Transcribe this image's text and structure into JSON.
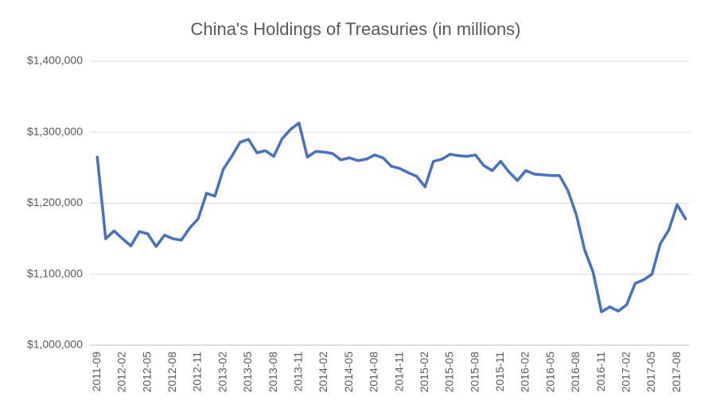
{
  "chart_data": {
    "type": "line",
    "title": "China's Holdings of Treasuries (in millions)",
    "categories": [
      "2011-09",
      null,
      null,
      "2012-02",
      null,
      null,
      "2012-05",
      null,
      null,
      "2012-08",
      null,
      null,
      "2012-11",
      null,
      null,
      "2013-02",
      null,
      null,
      "2013-05",
      null,
      null,
      "2013-08",
      null,
      null,
      "2013-11",
      null,
      null,
      "2014-02",
      null,
      null,
      "2014-05",
      null,
      null,
      "2014-08",
      null,
      null,
      "2014-11",
      null,
      null,
      "2015-02",
      null,
      null,
      "2015-05",
      null,
      null,
      "2015-08",
      null,
      null,
      "2015-11",
      null,
      null,
      "2016-02",
      null,
      null,
      "2016-05",
      null,
      null,
      "2016-08",
      null,
      null,
      "2016-11",
      null,
      null,
      "2017-02",
      null,
      null,
      "2017-05",
      null,
      null,
      "2017-08",
      null
    ],
    "series": [
      {
        "name": "Holdings",
        "color": "#4472c4",
        "values": [
          1265000,
          1150000,
          1161000,
          1150000,
          1140000,
          1160000,
          1157000,
          1139000,
          1155000,
          1150000,
          1148000,
          1165000,
          1178000,
          1214000,
          1210000,
          1248000,
          1266000,
          1286000,
          1290000,
          1271000,
          1274000,
          1266000,
          1291000,
          1304000,
          1313000,
          1265000,
          1273000,
          1272000,
          1270000,
          1261000,
          1264000,
          1260000,
          1262000,
          1268000,
          1264000,
          1252000,
          1249000,
          1243000,
          1238000,
          1223000,
          1259000,
          1262000,
          1269000,
          1267000,
          1266000,
          1268000,
          1253000,
          1246000,
          1259000,
          1244000,
          1232000,
          1246000,
          1241000,
          1240000,
          1239000,
          1239000,
          1218000,
          1184000,
          1134000,
          1103000,
          1047000,
          1054000,
          1048000,
          1057000,
          1087000,
          1092000,
          1100000,
          1143000,
          1162000,
          1198000,
          1178000
        ]
      }
    ],
    "ylim": [
      1000000,
      1400000
    ],
    "yticks": [
      {
        "value": 1000000,
        "label": "$1,000,000"
      },
      {
        "value": 1100000,
        "label": "$1,100,000"
      },
      {
        "value": 1200000,
        "label": "$1,200,000"
      },
      {
        "value": 1300000,
        "label": "$1,300,000"
      },
      {
        "value": 1400000,
        "label": "$1,400,000"
      }
    ],
    "grid": true
  }
}
